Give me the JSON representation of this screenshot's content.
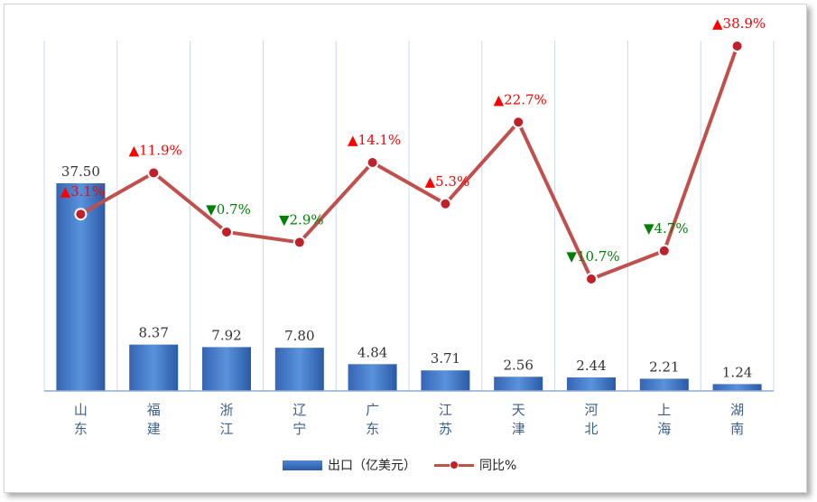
{
  "chart_data": {
    "type": "bar",
    "categories": [
      "山东",
      "福建",
      "浙江",
      "辽宁",
      "广东",
      "江苏",
      "天津",
      "河北",
      "上海",
      "湖南"
    ],
    "series": [
      {
        "name": "出口（亿美元）",
        "type": "bar",
        "values": [
          37.5,
          8.37,
          7.92,
          7.8,
          4.84,
          3.71,
          2.56,
          2.44,
          2.21,
          1.24
        ],
        "labels": [
          "37.50",
          "8.37",
          "7.92",
          "7.80",
          "4.84",
          "3.71",
          "2.56",
          "2.44",
          "2.21",
          "1.24"
        ]
      },
      {
        "name": "同比%",
        "type": "line",
        "values": [
          3.1,
          11.9,
          -0.7,
          -2.9,
          14.1,
          5.3,
          22.7,
          -10.7,
          -4.7,
          38.9
        ],
        "labels": [
          "3.1%",
          "11.9%",
          "0.7%",
          "2.9%",
          "14.1%",
          "5.3%",
          "22.7%",
          "10.7%",
          "4.7%",
          "38.9%"
        ]
      }
    ],
    "colors": {
      "bar": "#3a6fc0",
      "line": "#c0504d",
      "up": "#ff0000",
      "down": "#008000"
    },
    "up_marker": "▲",
    "down_marker": "▼",
    "grid": true,
    "legend_position": "bottom"
  },
  "legend": {
    "bar_label": "出口（亿美元）",
    "line_label": "同比%"
  }
}
